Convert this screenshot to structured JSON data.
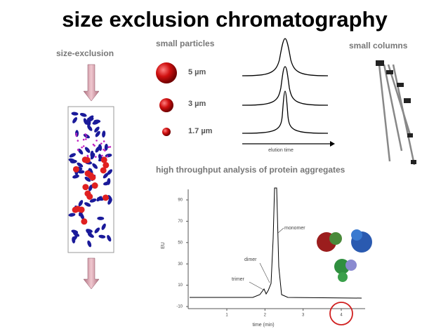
{
  "title": "size exclusion chromatography",
  "left_panel": {
    "label": "size-exclusion"
  },
  "particles": {
    "heading": "small particles",
    "sizes": [
      "5 µm",
      "3 µm",
      "1.7 µm"
    ],
    "axis_label": "elution time"
  },
  "columns": {
    "heading": "small columns"
  },
  "chromatogram": {
    "heading": "high throughput analysis of protein aggregates",
    "yticks": [
      -10,
      10,
      30,
      50,
      70,
      90
    ],
    "xticks": [
      1,
      2,
      3,
      4
    ],
    "ylabel": "EU",
    "xlabel": "time (min)",
    "annotations": [
      "monomer",
      "dimer",
      "trimer"
    ]
  }
}
